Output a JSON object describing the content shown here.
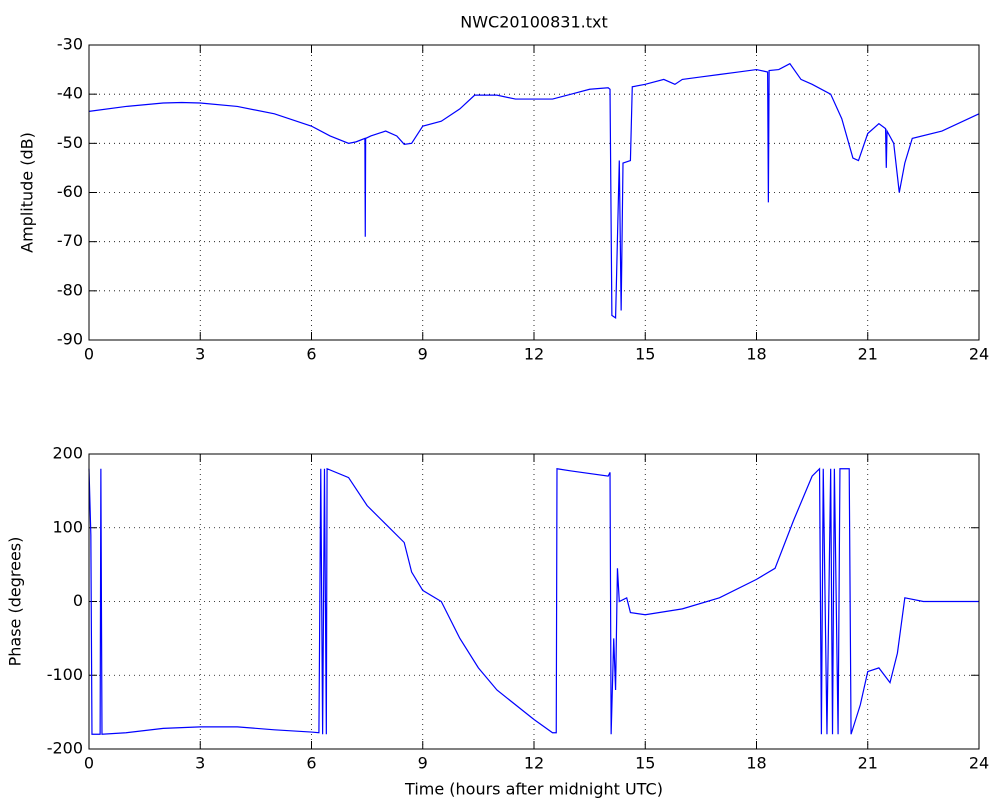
{
  "chart_data": [
    {
      "type": "line",
      "title": "NWC20100831.txt",
      "ylabel": "Amplitude (dB)",
      "x": [
        0,
        1,
        2,
        2.5,
        3,
        4,
        5,
        6,
        6.5,
        7,
        7.2,
        7.44,
        7.45,
        7.46,
        7.6,
        8,
        8.3,
        8.5,
        8.7,
        9,
        9.5,
        10,
        10.4,
        11,
        11.5,
        12,
        12.5,
        13,
        13.5,
        14,
        14.05,
        14.1,
        14.2,
        14.3,
        14.35,
        14.4,
        14.6,
        14.65,
        15,
        15.5,
        15.8,
        16,
        16.5,
        17,
        17.5,
        18,
        18.3,
        18.32,
        18.34,
        18.6,
        18.9,
        19.2,
        19.5,
        20,
        20.3,
        20.6,
        20.75,
        21,
        21.3,
        21.48,
        21.5,
        21.52,
        21.7,
        21.85,
        22,
        22.2,
        23,
        24
      ],
      "series": [
        {
          "color": "#0000ff",
          "values": [
            -43.5,
            -42.5,
            -41.8,
            -41.7,
            -41.8,
            -42.5,
            -44,
            -46.5,
            -48.5,
            -50,
            -49.7,
            -49,
            -69,
            -49,
            -48.5,
            -47.5,
            -48.5,
            -50.2,
            -50,
            -46.5,
            -45.5,
            -43,
            -40.2,
            -40.2,
            -41,
            -41,
            -41,
            -40,
            -39,
            -38.7,
            -39,
            -85,
            -85.5,
            -53.5,
            -84,
            -54,
            -53.5,
            -38.5,
            -38,
            -37,
            -38,
            -37,
            -36.5,
            -36,
            -35.5,
            -35,
            -35.5,
            -62,
            -35.2,
            -35,
            -33.8,
            -37,
            -38,
            -40,
            -45,
            -53,
            -53.5,
            -48,
            -46,
            -47,
            -55,
            -47.5,
            -50,
            -60,
            -54,
            -49,
            -47.5,
            -44
          ]
        }
      ],
      "xlim": [
        0,
        24
      ],
      "xticks": [
        0,
        3,
        6,
        9,
        12,
        15,
        18,
        21,
        24
      ],
      "ylim": [
        -90,
        -30
      ],
      "yticks": [
        -90,
        -80,
        -70,
        -60,
        -50,
        -40,
        -30
      ],
      "grid": true
    },
    {
      "type": "line",
      "ylabel": "Phase (degrees)",
      "xlabel": "Time (hours after midnight UTC)",
      "x": [
        0,
        0.05,
        0.08,
        0.3,
        0.32,
        0.35,
        1,
        2,
        3,
        4,
        5,
        6,
        6.2,
        6.25,
        6.3,
        6.35,
        6.4,
        6.42,
        7,
        7.5,
        8,
        8.5,
        8.7,
        9,
        9.5,
        10,
        10.5,
        11,
        12,
        12.5,
        12.6,
        12.62,
        13,
        14,
        14.05,
        14.08,
        14.15,
        14.2,
        14.25,
        14.3,
        14.5,
        14.6,
        15,
        16,
        17,
        18,
        18.5,
        19,
        19.5,
        19.7,
        19.75,
        19.8,
        19.9,
        20,
        20.05,
        20.1,
        20.2,
        20.25,
        20.5,
        20.55,
        20.8,
        21,
        21.3,
        21.6,
        21.8,
        22,
        22.5,
        24
      ],
      "series": [
        {
          "color": "#0000ff",
          "values": [
            180,
            90,
            -180,
            -180,
            180,
            -180,
            -178,
            -172,
            -170,
            -170,
            -174,
            -177,
            -178,
            180,
            -180,
            180,
            -180,
            180,
            168,
            130,
            105,
            80,
            40,
            15,
            0,
            -50,
            -90,
            -120,
            -160,
            -178,
            -178,
            180,
            177,
            170,
            175,
            -180,
            -50,
            -120,
            45,
            0,
            5,
            -15,
            -18,
            -10,
            5,
            30,
            45,
            110,
            170,
            180,
            -180,
            180,
            -180,
            180,
            -180,
            180,
            -180,
            180,
            180,
            -180,
            -140,
            -95,
            -90,
            -110,
            -70,
            5,
            0,
            0
          ]
        }
      ],
      "xlim": [
        0,
        24
      ],
      "xticks": [
        0,
        3,
        6,
        9,
        12,
        15,
        18,
        21,
        24
      ],
      "ylim": [
        -200,
        200
      ],
      "yticks": [
        -200,
        -100,
        0,
        100,
        200
      ],
      "grid": true
    }
  ]
}
